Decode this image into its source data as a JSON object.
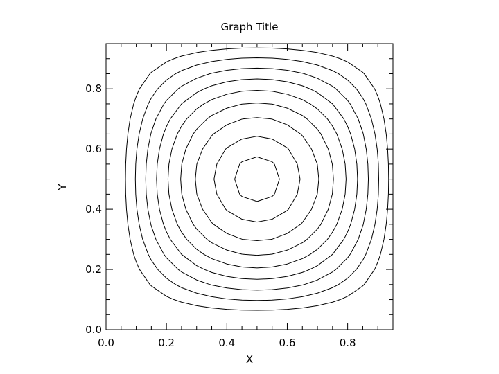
{
  "chart_data": {
    "type": "contour",
    "title": "Graph Title",
    "xlabel": "X",
    "ylabel": "Y",
    "xlim": [
      0.0,
      0.95
    ],
    "ylim": [
      0.0,
      0.95
    ],
    "xticks": [
      "0.0",
      "0.2",
      "0.4",
      "0.6",
      "0.8"
    ],
    "yticks": [
      "0.0",
      "0.2",
      "0.4",
      "0.6",
      "0.8"
    ],
    "field": "sin(pi*x)*sin(pi*y)",
    "levels": [
      0.2,
      0.3,
      0.4,
      0.5,
      0.6,
      0.7,
      0.8,
      0.9,
      0.97
    ],
    "grid": false,
    "line_color": "#000000"
  }
}
